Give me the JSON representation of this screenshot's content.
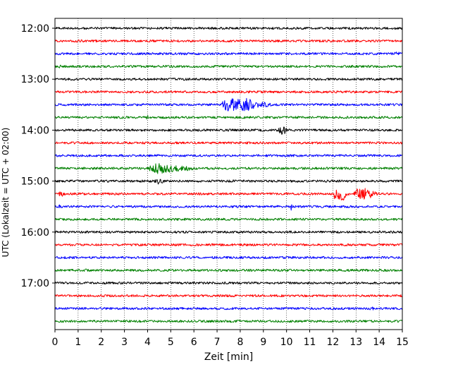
{
  "chart_data": {
    "type": "line",
    "title": "",
    "xlabel": "Zeit  [min]",
    "ylabel": "UTC (Lokalzeit = UTC + 02:00)",
    "xlim": [
      0,
      15
    ],
    "x_ticks": [
      0,
      1,
      2,
      3,
      4,
      5,
      6,
      7,
      8,
      9,
      10,
      11,
      12,
      13,
      14,
      15
    ],
    "x_tick_labels": [
      "0",
      "1",
      "2",
      "3",
      "4",
      "5",
      "6",
      "7",
      "8",
      "9",
      "10",
      "11",
      "12",
      "13",
      "14",
      "15"
    ],
    "y_tick_labels": [
      "12:00",
      "13:00",
      "14:00",
      "15:00",
      "16:00",
      "17:00"
    ],
    "y_tick_rows": [
      0,
      4,
      8,
      12,
      16,
      20
    ],
    "vertical_grid": true,
    "trace_interval_minutes": 15,
    "trace_colors": [
      "#000000",
      "#ff0000",
      "#0000ff",
      "#008000"
    ],
    "traces": [
      {
        "start": "12:00",
        "events": [
          {
            "t": 6.2,
            "amp": 1.3,
            "dur": 0.4
          }
        ]
      },
      {
        "start": "12:15",
        "events": [
          {
            "t": 1.1,
            "amp": 2.2,
            "dur": 0.6
          }
        ]
      },
      {
        "start": "12:30",
        "events": [
          {
            "t": 13.3,
            "amp": 1.8,
            "dur": 0.8
          },
          {
            "t": 14.8,
            "amp": 2.6,
            "dur": 0.6
          }
        ]
      },
      {
        "start": "12:45",
        "events": [
          {
            "t": 0.2,
            "amp": 2.3,
            "dur": 0.4
          },
          {
            "t": 6.8,
            "amp": 1.5,
            "dur": 0.5
          }
        ]
      },
      {
        "start": "13:00",
        "events": [
          {
            "t": 2.0,
            "amp": 1.2,
            "dur": 0.3
          },
          {
            "t": 9.9,
            "amp": 1.2,
            "dur": 0.3
          }
        ]
      },
      {
        "start": "13:15",
        "events": [
          {
            "t": 8.0,
            "amp": 1.2,
            "dur": 0.4
          }
        ]
      },
      {
        "start": "13:30",
        "events": [
          {
            "t": 7.6,
            "amp": 9.5,
            "dur": 1.0
          },
          {
            "t": 8.2,
            "amp": 10,
            "dur": 1.2
          },
          {
            "t": 9.0,
            "amp": 4,
            "dur": 0.8
          }
        ]
      },
      {
        "start": "13:45",
        "events": [
          {
            "t": 4.0,
            "amp": 3.0,
            "dur": 0.2
          }
        ]
      },
      {
        "start": "14:00",
        "events": [
          {
            "t": 6.4,
            "amp": 1.5,
            "dur": 0.6
          },
          {
            "t": 9.8,
            "amp": 6.5,
            "dur": 0.5
          }
        ]
      },
      {
        "start": "14:15",
        "events": [
          {
            "t": 12.8,
            "amp": 1.2,
            "dur": 0.5
          }
        ]
      },
      {
        "start": "14:30",
        "events": [
          {
            "t": 7.5,
            "amp": 1.5,
            "dur": 0.4
          },
          {
            "t": 10.0,
            "amp": 3.0,
            "dur": 0.15
          },
          {
            "t": 11.8,
            "amp": 1.2,
            "dur": 0.4
          }
        ]
      },
      {
        "start": "14:45",
        "events": [
          {
            "t": 4.6,
            "amp": 8.0,
            "dur": 1.3
          },
          {
            "t": 5.4,
            "amp": 4.5,
            "dur": 1.4
          },
          {
            "t": 6.8,
            "amp": 1.8,
            "dur": 1.2
          }
        ]
      },
      {
        "start": "15:00",
        "events": [
          {
            "t": 4.5,
            "amp": 4.5,
            "dur": 0.5
          },
          {
            "t": 15.0,
            "amp": 2.0,
            "dur": 0.1
          }
        ]
      },
      {
        "start": "15:15",
        "events": [
          {
            "t": 0.3,
            "amp": 3.5,
            "dur": 0.5
          },
          {
            "t": 10.0,
            "amp": 2.0,
            "dur": 0.1
          },
          {
            "t": 12.3,
            "amp": 13,
            "dur": 0.6
          },
          {
            "t": 13.3,
            "amp": 9,
            "dur": 1.0
          }
        ]
      },
      {
        "start": "15:30",
        "events": [
          {
            "t": 0.2,
            "amp": 3.0,
            "dur": 0.3
          },
          {
            "t": 10.2,
            "amp": 5.5,
            "dur": 0.15
          }
        ]
      },
      {
        "start": "15:45",
        "events": [
          {
            "t": 3.0,
            "amp": 1.4,
            "dur": 0.3
          }
        ]
      },
      {
        "start": "16:00",
        "events": [
          {
            "t": 3.0,
            "amp": 1.2,
            "dur": 0.3
          }
        ]
      },
      {
        "start": "16:15",
        "events": [
          {
            "t": 4.7,
            "amp": 1.3,
            "dur": 0.4
          }
        ]
      },
      {
        "start": "16:30",
        "events": [
          {
            "t": 4.0,
            "amp": 1.2,
            "dur": 0.3
          }
        ]
      },
      {
        "start": "16:45",
        "events": [
          {
            "t": 1.3,
            "amp": 2.0,
            "dur": 0.3
          }
        ]
      },
      {
        "start": "17:00",
        "events": [
          {
            "t": 9.5,
            "amp": 1.3,
            "dur": 0.3
          }
        ]
      },
      {
        "start": "17:15",
        "events": [
          {
            "t": 5.7,
            "amp": 1.5,
            "dur": 0.3
          }
        ]
      },
      {
        "start": "17:30",
        "events": [
          {
            "t": 13.7,
            "amp": 2.2,
            "dur": 0.5
          }
        ]
      },
      {
        "start": "17:45",
        "events": [
          {
            "t": 13.4,
            "amp": 1.8,
            "dur": 0.3
          }
        ]
      }
    ]
  }
}
